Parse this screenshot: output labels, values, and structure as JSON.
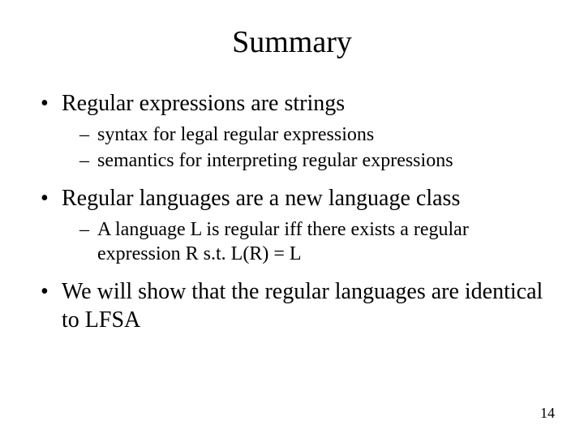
{
  "title": "Summary",
  "bullets": [
    {
      "text": "Regular expressions are strings",
      "sub": [
        "syntax for legal regular expressions",
        "semantics for interpreting regular expressions"
      ]
    },
    {
      "text": "Regular languages are a new language class",
      "sub": [
        "A language L is regular iff there exists a regular expression R s.t. L(R) = L"
      ]
    },
    {
      "text": "We will show that the regular languages are identical to LFSA",
      "sub": []
    }
  ],
  "page_number": "14"
}
